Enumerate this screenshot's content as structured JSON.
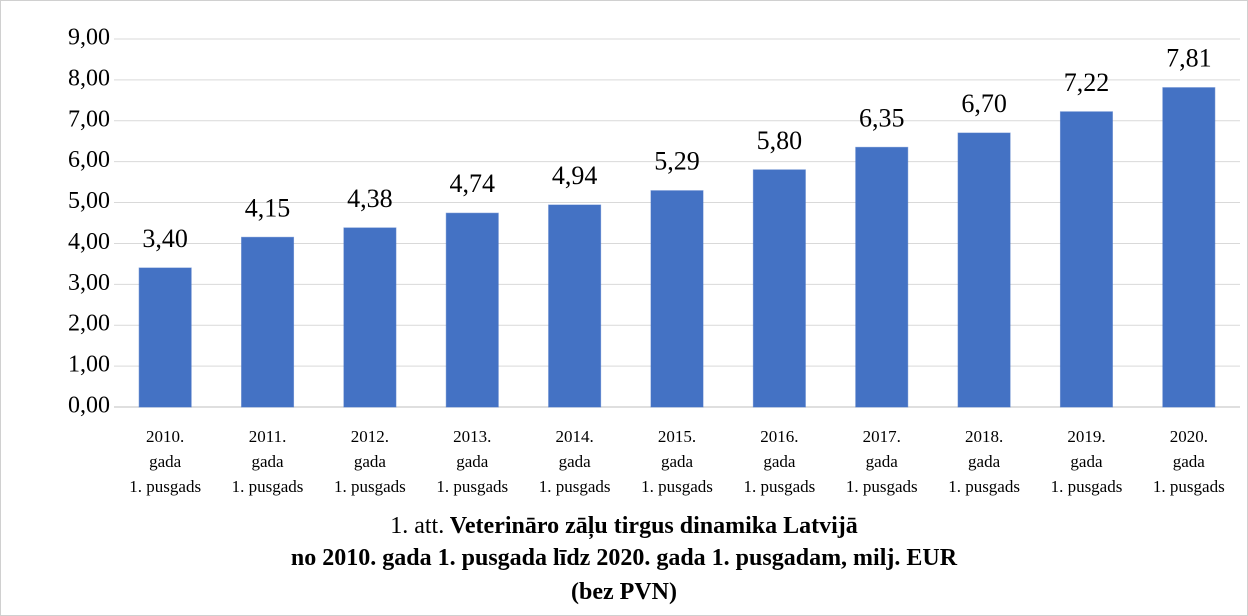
{
  "chart_data": {
    "type": "bar",
    "caption_label": "1. att.",
    "title": "Veterināro zāļu tirgus dinamika Latvijā\nno 2010. gada 1. pusgada līdz 2020. gada 1. pusgadam, milj. EUR\n(bez PVN)",
    "categories": [
      "2010.\ngada\n1. pusgads",
      "2011.\ngada\n1. pusgads",
      "2012.\ngada\n1. pusgads",
      "2013.\ngada\n1. pusgads",
      "2014.\ngada\n1. pusgads",
      "2015.\ngada\n1. pusgads",
      "2016.\ngada\n1. pusgads",
      "2017.\ngada\n1. pusgads",
      "2018.\ngada\n1. pusgads",
      "2019.\ngada\n1. pusgads",
      "2020.\ngada\n1. pusgads"
    ],
    "values": [
      3.4,
      4.15,
      4.38,
      4.74,
      4.94,
      5.29,
      5.8,
      6.35,
      6.7,
      7.22,
      7.81
    ],
    "value_labels": [
      "3,40",
      "4,15",
      "4,38",
      "4,74",
      "4,94",
      "5,29",
      "5,80",
      "6,35",
      "6,70",
      "7,22",
      "7,81"
    ],
    "color": "#4472c4",
    "ylim": [
      0,
      9
    ],
    "yticks": [
      {
        "value": 0,
        "label": "0,00"
      },
      {
        "value": 1,
        "label": "1,00"
      },
      {
        "value": 2,
        "label": "2,00"
      },
      {
        "value": 3,
        "label": "3,00"
      },
      {
        "value": 4,
        "label": "4,00"
      },
      {
        "value": 5,
        "label": "5,00"
      },
      {
        "value": 6,
        "label": "6,00"
      },
      {
        "value": 7,
        "label": "7,00"
      },
      {
        "value": 8,
        "label": "8,00"
      },
      {
        "value": 9,
        "label": "9,00"
      }
    ],
    "grid": true
  }
}
